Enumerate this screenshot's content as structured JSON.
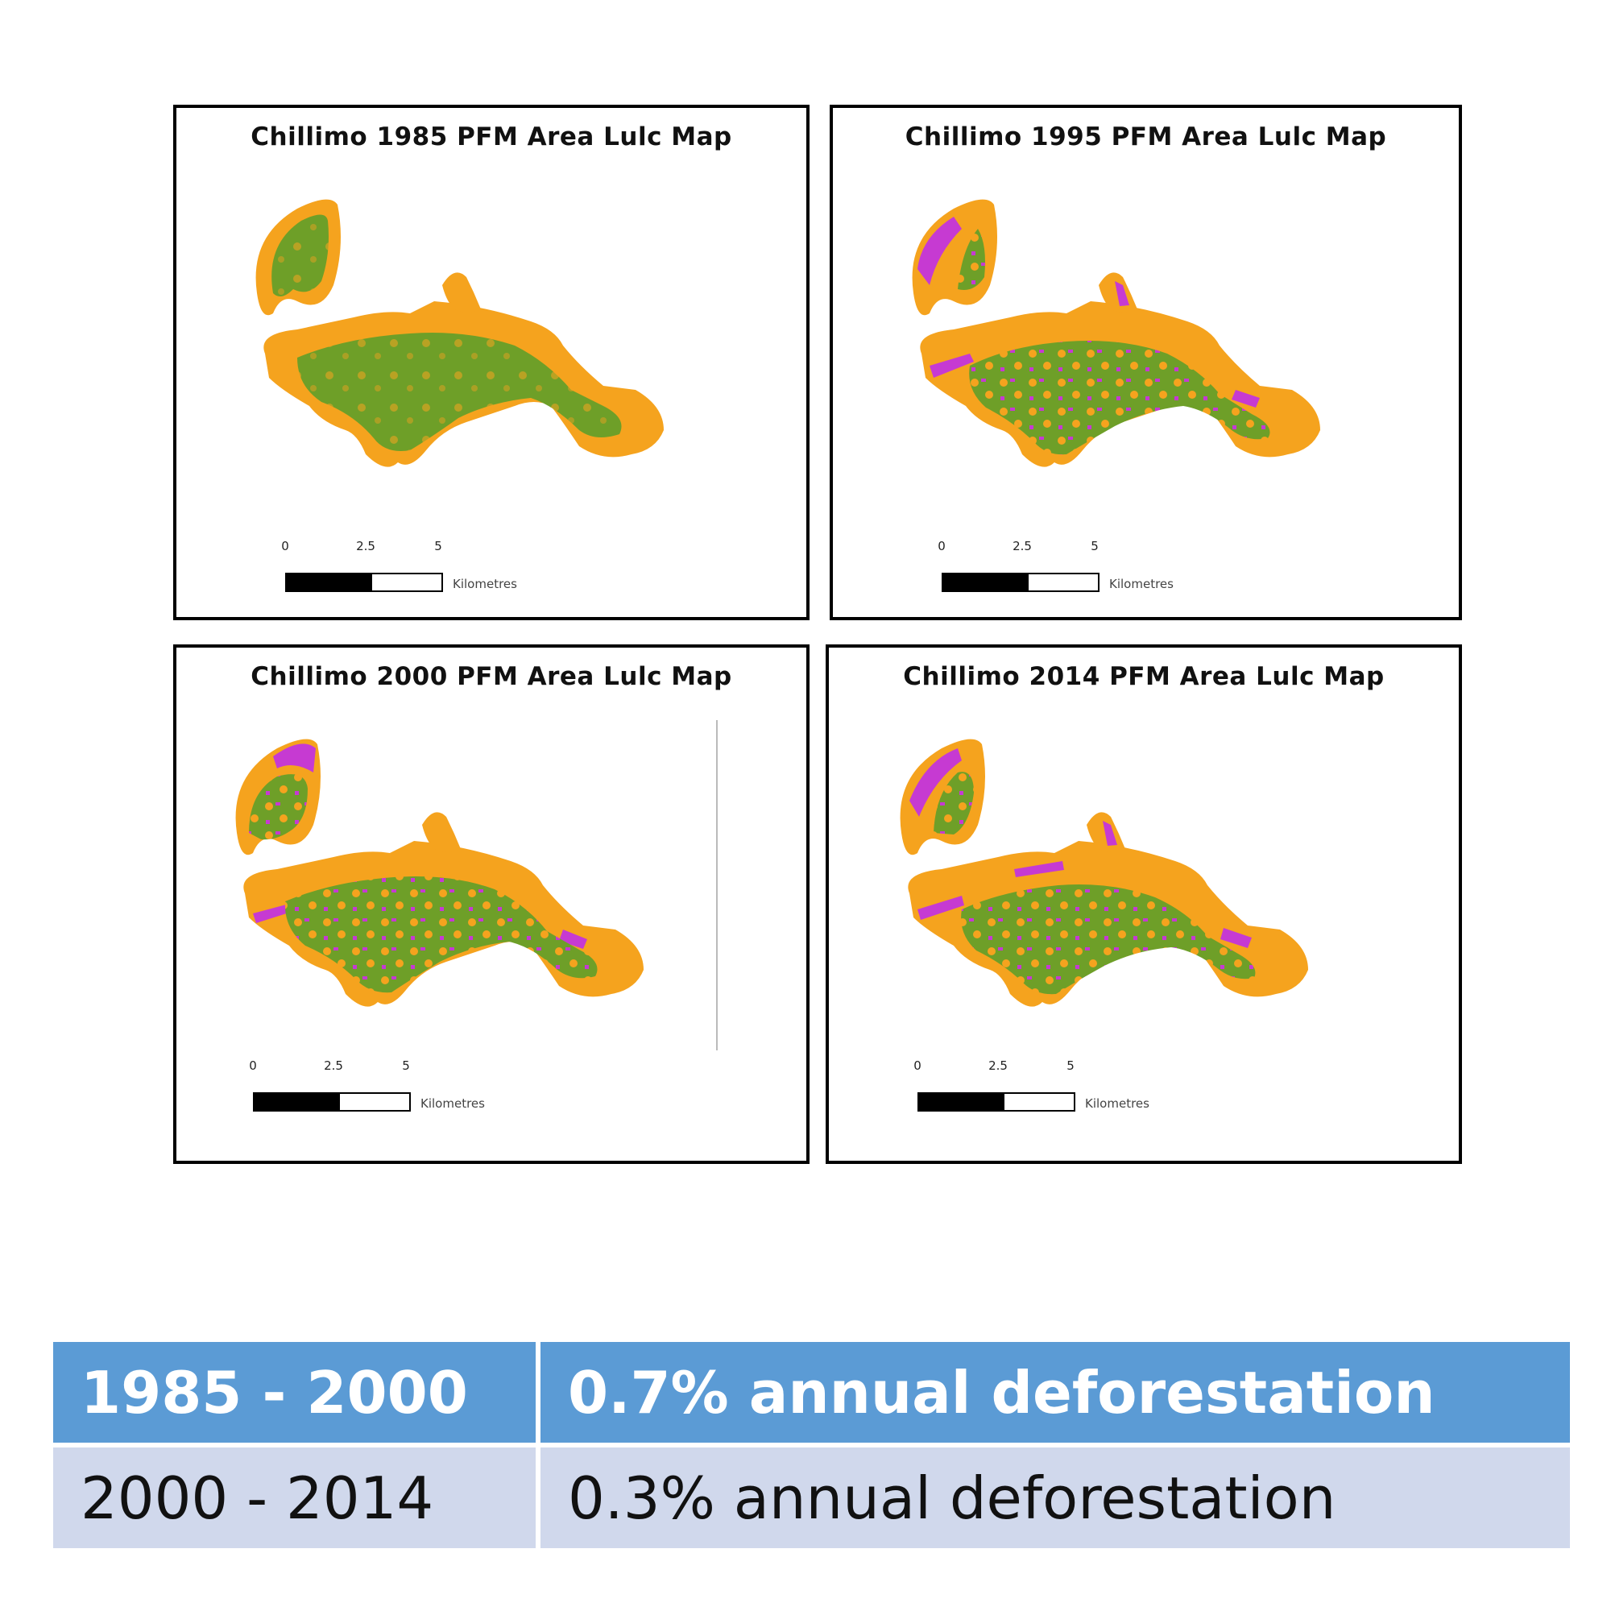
{
  "colors": {
    "forest": "#6e9f28",
    "cropland": "#f5a31e",
    "deforested": "#c63ad2",
    "header_bg": "#5b9bd5",
    "row_bg": "#d0d8ec"
  },
  "maps": [
    {
      "title": "Chillimo 1985 PFM Area Lulc Map",
      "scale": {
        "ticks": [
          "0",
          "2.5",
          "5"
        ],
        "unit": "Kilometres"
      }
    },
    {
      "title": "Chillimo 1995 PFM Area Lulc Map",
      "scale": {
        "ticks": [
          "0",
          "2.5",
          "5"
        ],
        "unit": "Kilometres"
      }
    },
    {
      "title": "Chillimo 2000 PFM Area Lulc Map",
      "scale": {
        "ticks": [
          "0",
          "2.5",
          "5"
        ],
        "unit": "Kilometres"
      }
    },
    {
      "title": "Chillimo 2014 PFM Area Lulc Map",
      "scale": {
        "ticks": [
          "0",
          "2.5",
          "5"
        ],
        "unit": "Kilometres"
      }
    }
  ],
  "table": {
    "rows": [
      {
        "period": "1985 - 2000",
        "rate": "0.7% annual deforestation"
      },
      {
        "period": "2000 - 2014",
        "rate": "0.3% annual deforestation"
      }
    ]
  }
}
